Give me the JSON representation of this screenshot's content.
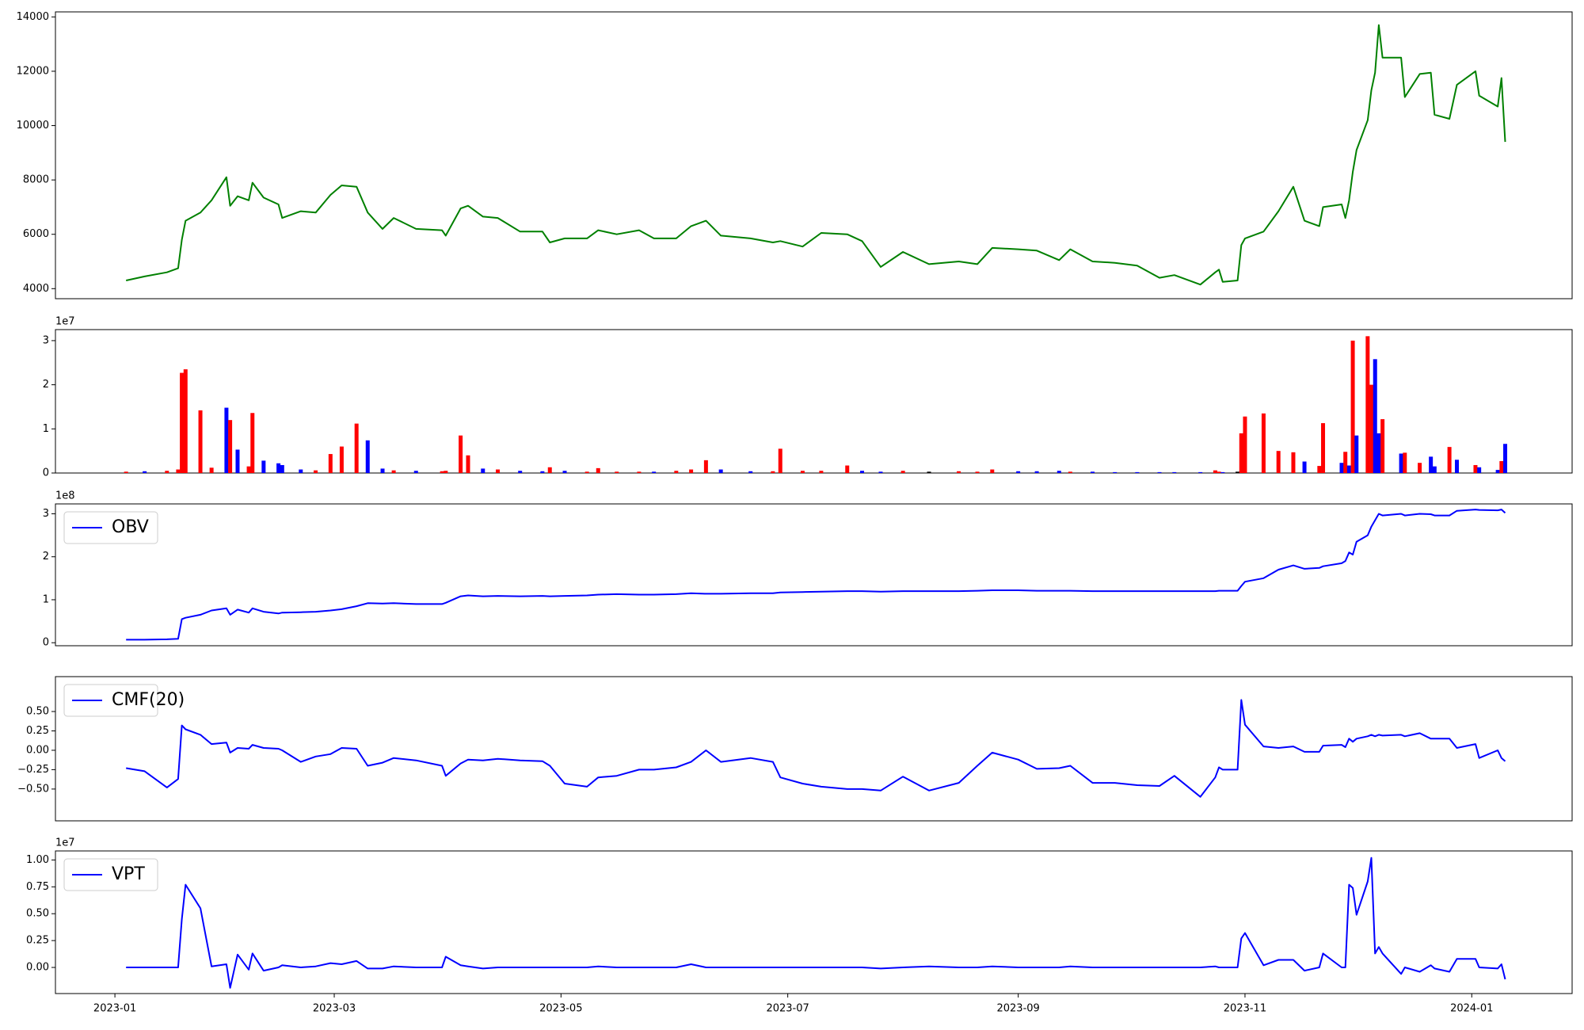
{
  "chart_data": {
    "type": "multi-panel",
    "x": [
      "2023-01-04",
      "2023-01-09",
      "2023-01-15",
      "2023-01-18",
      "2023-01-19",
      "2023-01-20",
      "2023-01-24",
      "2023-01-27",
      "2023-01-31",
      "2023-02-01",
      "2023-02-03",
      "2023-02-06",
      "2023-02-07",
      "2023-02-10",
      "2023-02-14",
      "2023-02-15",
      "2023-02-20",
      "2023-02-24",
      "2023-02-28",
      "2023-03-03",
      "2023-03-07",
      "2023-03-10",
      "2023-03-14",
      "2023-03-17",
      "2023-03-23",
      "2023-03-30",
      "2023-03-31",
      "2023-04-04",
      "2023-04-06",
      "2023-04-10",
      "2023-04-14",
      "2023-04-20",
      "2023-04-26",
      "2023-04-28",
      "2023-05-02",
      "2023-05-08",
      "2023-05-11",
      "2023-05-16",
      "2023-05-22",
      "2023-05-26",
      "2023-06-01",
      "2023-06-05",
      "2023-06-09",
      "2023-06-13",
      "2023-06-21",
      "2023-06-27",
      "2023-06-29",
      "2023-07-05",
      "2023-07-10",
      "2023-07-17",
      "2023-07-21",
      "2023-07-26",
      "2023-08-01",
      "2023-08-08",
      "2023-08-16",
      "2023-08-21",
      "2023-08-25",
      "2023-09-01",
      "2023-09-06",
      "2023-09-12",
      "2023-09-15",
      "2023-09-21",
      "2023-09-27",
      "2023-10-03",
      "2023-10-09",
      "2023-10-13",
      "2023-10-20",
      "2023-10-24",
      "2023-10-25",
      "2023-10-26",
      "2023-10-30",
      "2023-10-31",
      "2023-11-01",
      "2023-11-06",
      "2023-11-10",
      "2023-11-14",
      "2023-11-17",
      "2023-11-21",
      "2023-11-22",
      "2023-11-27",
      "2023-11-28",
      "2023-11-29",
      "2023-11-30",
      "2023-12-01",
      "2023-12-04",
      "2023-12-05",
      "2023-12-06",
      "2023-12-07",
      "2023-12-08",
      "2023-12-13",
      "2023-12-14",
      "2023-12-18",
      "2023-12-21",
      "2023-12-22",
      "2023-12-26",
      "2023-12-28",
      "2024-01-02",
      "2024-01-03",
      "2024-01-08",
      "2024-01-09",
      "2024-01-10"
    ],
    "xlim": [
      "2022-12-16",
      "2024-01-28"
    ],
    "xticks": [
      {
        "value": "2023-01-01",
        "label": "2023-01"
      },
      {
        "value": "2023-03-01",
        "label": "2023-03"
      },
      {
        "value": "2023-05-01",
        "label": "2023-05"
      },
      {
        "value": "2023-07-01",
        "label": "2023-07"
      },
      {
        "value": "2023-09-01",
        "label": "2023-09"
      },
      {
        "value": "2023-11-01",
        "label": "2023-11"
      },
      {
        "value": "2024-01-01",
        "label": "2024-01"
      }
    ],
    "panels": [
      {
        "type": "line",
        "ylim": [
          3630,
          14185
        ],
        "yticks": [
          4000,
          6000,
          8000,
          10000,
          12000,
          14000
        ],
        "series": [
          {
            "color": "green",
            "values": [
              4300,
              4450,
              4600,
              4750,
              5800,
              6500,
              6800,
              7250,
              8100,
              7050,
              7400,
              7250,
              7900,
              7350,
              7100,
              6600,
              6850,
              6800,
              7450,
              7800,
              7750,
              6800,
              6200,
              6600,
              6200,
              6150,
              5950,
              6950,
              7050,
              6650,
              6600,
              6100,
              6100,
              5700,
              5850,
              5850,
              6150,
              6000,
              6150,
              5850,
              5850,
              6300,
              6500,
              5950,
              5850,
              5700,
              5750,
              5550,
              6050,
              6000,
              5750,
              4800,
              5350,
              4900,
              5000,
              4900,
              5500,
              5450,
              5400,
              5050,
              5450,
              5000,
              4950,
              4850,
              4400,
              4500,
              4150,
              4600,
              4700,
              4250,
              4300,
              5600,
              5850,
              6100,
              6850,
              7750,
              6500,
              6300,
              7000,
              7100,
              6600,
              7250,
              8300,
              9100,
              10200,
              11300,
              11950,
              13700,
              12500,
              12500,
              11050,
              11900,
              11950,
              10400,
              10250,
              11500,
              12000,
              11100,
              10700,
              11750,
              9400
            ]
          }
        ]
      },
      {
        "type": "bar",
        "offset_label": "1e7",
        "ylim": [
          0,
          32500000
        ],
        "yticks": [
          0,
          {
            "value": 10000000,
            "label": "1"
          },
          {
            "value": 20000000,
            "label": "2"
          },
          {
            "value": 30000000,
            "label": "3"
          }
        ],
        "values": [
          300000.0,
          400000.0,
          500000.0,
          800000.0,
          22700000.0,
          23500000.0,
          14200000.0,
          1200000.0,
          14800000.0,
          12000000.0,
          5300000.0,
          1500000.0,
          13600000.0,
          2800000.0,
          2200000.0,
          1800000.0,
          800000.0,
          600000.0,
          4300000.0,
          6000000.0,
          11200000.0,
          7400000.0,
          1000000.0,
          600000.0,
          500000.0,
          400000.0,
          500000.0,
          8500000.0,
          4000000.0,
          1000000.0,
          800000.0,
          500000.0,
          400000.0,
          1300000.0,
          500000.0,
          300000.0,
          1100000.0,
          300000.0,
          300000.0,
          300000.0,
          500000.0,
          800000.0,
          2900000.0,
          800000.0,
          400000.0,
          400000.0,
          5500000.0,
          500000.0,
          500000.0,
          1700000.0,
          500000.0,
          300000.0,
          500000.0,
          300000.0,
          400000.0,
          300000.0,
          800000.0,
          400000.0,
          400000.0,
          500000.0,
          300000.0,
          300000.0,
          200000.0,
          200000.0,
          200000.0,
          200000.0,
          200000.0,
          600000.0,
          300000.0,
          200000.0,
          300000.0,
          9000000.0,
          12800000.0,
          13500000.0,
          5000000.0,
          4700000.0,
          2600000.0,
          1600000.0,
          11300000.0,
          2300000.0,
          4800000.0,
          1700000.0,
          30000000.0,
          8500000.0,
          31000000.0,
          20000000.0,
          25800000.0,
          9000000.0,
          12200000.0,
          4400000.0,
          4600000.0,
          2300000.0,
          3700000.0,
          1500000.0,
          5900000.0,
          3000000.0,
          1800000.0,
          1300000.0,
          700000.0,
          2700000.0,
          6600000.0
        ],
        "colors": [
          "red",
          "blue",
          "red",
          "red",
          "red",
          "red",
          "red",
          "red",
          "blue",
          "red",
          "blue",
          "red",
          "red",
          "blue",
          "blue",
          "blue",
          "blue",
          "red",
          "red",
          "red",
          "red",
          "blue",
          "blue",
          "red",
          "blue",
          "red",
          "red",
          "red",
          "red",
          "blue",
          "red",
          "blue",
          "blue",
          "red",
          "blue",
          "red",
          "red",
          "red",
          "red",
          "blue",
          "red",
          "red",
          "red",
          "blue",
          "blue",
          "red",
          "red",
          "red",
          "red",
          "red",
          "blue",
          "blue",
          "red",
          "black",
          "red",
          "red",
          "red",
          "blue",
          "blue",
          "blue",
          "red",
          "blue",
          "blue",
          "blue",
          "blue",
          "blue",
          "blue",
          "red",
          "red",
          "blue",
          "black",
          "red",
          "red",
          "red",
          "red",
          "red",
          "blue",
          "red",
          "red",
          "blue",
          "red",
          "blue",
          "red",
          "blue",
          "red",
          "red",
          "blue",
          "blue",
          "red",
          "blue",
          "red",
          "red",
          "blue",
          "blue",
          "red",
          "blue",
          "red",
          "blue",
          "blue",
          "red",
          "blue"
        ]
      },
      {
        "type": "line",
        "offset_label": "1e8",
        "legend": "upper left",
        "ylim": [
          -7000000,
          323000000
        ],
        "yticks": [
          0,
          {
            "value": 100000000,
            "label": "1"
          },
          {
            "value": 200000000,
            "label": "2"
          },
          {
            "value": 300000000,
            "label": "3"
          }
        ],
        "series": [
          {
            "name": "OBV",
            "color": "blue",
            "values": [
              7000000.0,
              7000000.0,
              8000000.0,
              9000000.0,
              55000000.0,
              58000000.0,
              65000000.0,
              75000000.0,
              80000000.0,
              65000000.0,
              77000000.0,
              70000000.0,
              80000000.0,
              72000000.0,
              68000000.0,
              70000000.0,
              71000000.0,
              72000000.0,
              75000000.0,
              78000000.0,
              85000000.0,
              92000000.0,
              91000000.0,
              92000000.0,
              90000000.0,
              90000000.0,
              93000000.0,
              108000000.0,
              110000000.0,
              108000000.0,
              109000000.0,
              108000000.0,
              109000000.0,
              108000000.0,
              109000000.0,
              110000000.0,
              112000000.0,
              113000000.0,
              112000000.0,
              112000000.0,
              113000000.0,
              115000000.0,
              114000000.0,
              114000000.0,
              115000000.0,
              115000000.0,
              117000000.0,
              118000000.0,
              119000000.0,
              120000000.0,
              120000000.0,
              119000000.0,
              120000000.0,
              120000000.0,
              120000000.0,
              121000000.0,
              122000000.0,
              122000000.0,
              121000000.0,
              121000000.0,
              121000000.0,
              120000000.0,
              120000000.0,
              120000000.0,
              120000000.0,
              120000000.0,
              120000000.0,
              120000000.0,
              121000000.0,
              121000000.0,
              121000000.0,
              132000000.0,
              142000000.0,
              150000000.0,
              170000000.0,
              180000000.0,
              172000000.0,
              174000000.0,
              178000000.0,
              185000000.0,
              190000000.0,
              210000000.0,
              205000000.0,
              235000000.0,
              250000000.0,
              270000000.0,
              285000000.0,
              300000000.0,
              296000000.0,
              300000000.0,
              296000000.0,
              300000000.0,
              299000000.0,
              296000000.0,
              296000000.0,
              307000000.0,
              310000000.0,
              309000000.0,
              308000000.0,
              310000000.0,
              302000000.0
            ]
          }
        ]
      },
      {
        "type": "line",
        "legend": "upper left",
        "ylim": [
          -0.91,
          0.95
        ],
        "yticks": [
          {
            "value": -0.5,
            "label": "−0.50"
          },
          {
            "value": -0.25,
            "label": "−0.25"
          },
          {
            "value": 0,
            "label": "0.00"
          },
          {
            "value": 0.25,
            "label": "0.25"
          },
          {
            "value": 0.5,
            "label": "0.50"
          }
        ],
        "series": [
          {
            "name": "CMF(20)",
            "color": "blue",
            "values": [
              -0.23,
              -0.27,
              -0.48,
              -0.37,
              0.32,
              0.27,
              0.2,
              0.08,
              0.1,
              -0.03,
              0.03,
              0.02,
              0.07,
              0.03,
              0.02,
              0,
              -0.15,
              -0.08,
              -0.05,
              0.03,
              0.02,
              -0.2,
              -0.16,
              -0.1,
              -0.13,
              -0.2,
              -0.33,
              -0.17,
              -0.12,
              -0.13,
              -0.11,
              -0.13,
              -0.14,
              -0.2,
              -0.43,
              -0.47,
              -0.35,
              -0.33,
              -0.25,
              -0.25,
              -0.22,
              -0.15,
              0,
              -0.15,
              -0.1,
              -0.15,
              -0.35,
              -0.43,
              -0.47,
              -0.5,
              -0.5,
              -0.52,
              -0.34,
              -0.52,
              -0.42,
              -0.2,
              -0.03,
              -0.12,
              -0.24,
              -0.23,
              -0.2,
              -0.42,
              -0.42,
              -0.45,
              -0.46,
              -0.33,
              -0.6,
              -0.35,
              -0.22,
              -0.25,
              -0.25,
              0.65,
              0.33,
              0.05,
              0.03,
              0.05,
              -0.02,
              -0.02,
              0.06,
              0.07,
              0.04,
              0.15,
              0.11,
              0.15,
              0.18,
              0.2,
              0.18,
              0.2,
              0.19,
              0.2,
              0.18,
              0.22,
              0.15,
              0.15,
              0.15,
              0.03,
              0.08,
              -0.1,
              0,
              -0.1,
              -0.14
            ]
          }
        ]
      },
      {
        "type": "line",
        "offset_label": "1e7",
        "legend": "upper left",
        "ylim": [
          -2430000,
          10840000
        ],
        "yticks": [
          {
            "value": 0,
            "label": "0.00"
          },
          {
            "value": 2500000,
            "label": "0.25"
          },
          {
            "value": 5000000,
            "label": "0.50"
          },
          {
            "value": 7500000,
            "label": "0.75"
          },
          {
            "value": 10000000,
            "label": "1.00"
          }
        ],
        "series": [
          {
            "name": "VPT",
            "color": "blue",
            "values": [
              0,
              0,
              0,
              0,
              4500000.0,
              7700000.0,
              5500000.0,
              100000.0,
              300000.0,
              -1900000.0,
              1200000.0,
              -200000.0,
              1300000.0,
              -300000.0,
              0,
              200000.0,
              0,
              100000.0,
              400000.0,
              300000.0,
              600000.0,
              -100000.0,
              -100000.0,
              100000.0,
              0,
              0,
              1000000.0,
              200000.0,
              100000.0,
              -100000.0,
              0,
              0,
              0,
              0,
              0,
              0,
              100000.0,
              0,
              0,
              0,
              0,
              300000.0,
              0,
              0,
              0,
              0,
              0,
              0,
              0,
              0,
              0,
              -100000.0,
              0,
              100000.0,
              0,
              0,
              100000.0,
              0,
              0,
              0,
              100000.0,
              0,
              0,
              0,
              0,
              0,
              0,
              100000.0,
              0,
              0,
              0,
              2700000.0,
              3200000.0,
              200000.0,
              700000.0,
              700000.0,
              -300000.0,
              0,
              1300000.0,
              0,
              0,
              7700000.0,
              7400000.0,
              4900000.0,
              8000000.0,
              10200000.0,
              1300000.0,
              1900000.0,
              1300000.0,
              -600000.0,
              0,
              -400000.0,
              200000.0,
              -100000.0,
              -400000.0,
              800000.0,
              800000.0,
              0,
              -100000.0,
              300000.0,
              -1100000.0
            ]
          }
        ]
      }
    ]
  }
}
